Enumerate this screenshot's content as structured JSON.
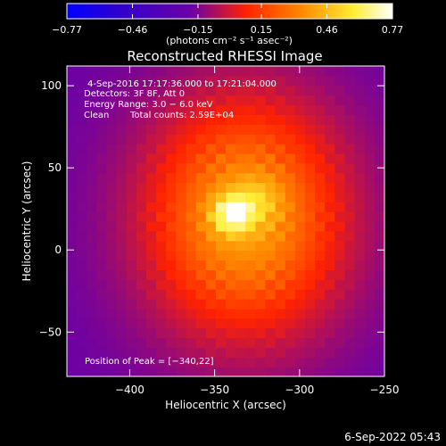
{
  "chart_data": {
    "type": "heatmap",
    "title": "Reconstructed RHESSI Image",
    "xlabel": "Heliocentric X (arcsec)",
    "ylabel": "Heliocentric Y (arcsec)",
    "xlim": [
      -437,
      -250
    ],
    "ylim": [
      -77,
      112
    ],
    "x_ticks": [
      -400,
      -350,
      -300,
      -250
    ],
    "x_tick_labels": [
      "−400",
      "−350",
      "−300",
      "−250"
    ],
    "y_ticks": [
      -50,
      0,
      50,
      100
    ],
    "y_tick_labels": [
      "−50",
      "0",
      "50",
      "100"
    ],
    "colorbar": {
      "range": [
        -0.77,
        0.77
      ],
      "ticks": [
        -0.77,
        -0.46,
        -0.15,
        0.15,
        0.46,
        0.77
      ],
      "tick_labels": [
        "−0.77",
        "−0.46",
        "−0.15",
        "0.15",
        "0.46",
        "0.77"
      ],
      "colors": [
        "#0000ff",
        "#3300cc",
        "#6a00a8",
        "#ff2200",
        "#ff8800",
        "#ffee33",
        "#ffffff"
      ],
      "units_label": "(photons cm⁻² s⁻¹ asec⁻²)"
    },
    "image": {
      "grid_cols": 32,
      "grid_rows": 32,
      "peak": {
        "x": -340,
        "y": 22,
        "value": 0.77
      },
      "secondary_peak": {
        "x": -325,
        "y": 30,
        "value": 0.55
      },
      "background_value": -0.25
    },
    "annotations": {
      "time_range": "4-Sep-2016 17:17:36.000 to 17:21:04.000",
      "detectors": "Detectors: 3F 8F, Att 0",
      "energy_range": "Energy Range: 3.0 − 6.0 keV",
      "method": "Clean",
      "total_counts": "Total counts: 2.59E+04",
      "peak_position": "Position of Peak = [−340,22]"
    },
    "footer_date": "6-Sep-2022 05:43"
  }
}
